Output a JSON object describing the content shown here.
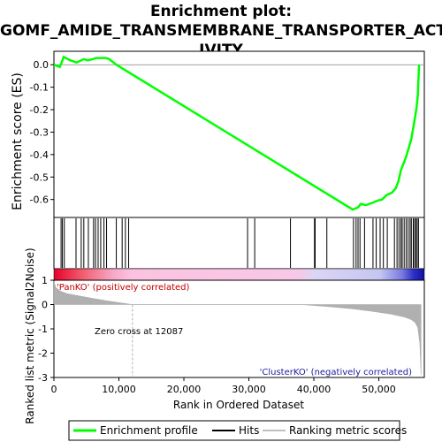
{
  "chart_data": {
    "type": "line",
    "title_line1": "Enrichment plot:",
    "title_line2": "GOMF_AMIDE_TRANSMEMBRANE_TRANSPORTER_ACT",
    "title_line3": "IVITY",
    "es_ylabel": "Enrichment score (ES)",
    "metric_ylabel": "Ranked list metric (Signal2Noise)",
    "xlabel": "Rank in Ordered Dataset",
    "xlim": [
      0,
      57000
    ],
    "es_ylim": [
      -0.68,
      0.06
    ],
    "metric_ylim": [
      -3,
      1
    ],
    "x_ticks": [
      0,
      10000,
      20000,
      30000,
      40000,
      50000
    ],
    "x_tick_labels": [
      "0",
      "10,000",
      "20,000",
      "30,000",
      "40,000",
      "50,000"
    ],
    "es_ticks": [
      0.0,
      -0.1,
      -0.2,
      -0.3,
      -0.4,
      -0.5,
      -0.6
    ],
    "es_tick_labels": [
      "0.0",
      "-0.1",
      "-0.2",
      "-0.3",
      "-0.4",
      "-0.5",
      "-0.6"
    ],
    "metric_ticks": [
      1,
      0,
      -1,
      -2,
      -3
    ],
    "metric_tick_labels": [
      "1",
      "0",
      "-1",
      "-2",
      "-3"
    ],
    "annotations": {
      "pos_label": "'PanKO' (positively correlated)",
      "neg_label": "'ClusterKO' (negatively correlated)",
      "zero_cross": "Zero cross at 12087"
    },
    "zero_cross_rank": 12087,
    "series": [
      {
        "name": "Enrichment profile",
        "color": "#00ff00",
        "x": [
          0,
          900,
          1200,
          1500,
          2500,
          3500,
          4200,
          4600,
          5200,
          6000,
          6500,
          7000,
          7500,
          8000,
          8500,
          9600,
          46000,
          46800,
          47200,
          48000,
          49000,
          49800,
          50500,
          51200,
          52000,
          52600,
          53000,
          53400,
          53800,
          54200,
          54600,
          55000,
          55300,
          55600,
          55800,
          56000,
          56100,
          56200
        ],
        "y": [
          0.0,
          -0.01,
          0.01,
          0.035,
          0.02,
          0.01,
          0.02,
          0.025,
          0.02,
          0.025,
          0.03,
          0.03,
          0.03,
          0.03,
          0.025,
          0.0,
          -0.645,
          -0.635,
          -0.62,
          -0.625,
          -0.615,
          -0.605,
          -0.6,
          -0.58,
          -0.57,
          -0.55,
          -0.52,
          -0.47,
          -0.44,
          -0.41,
          -0.37,
          -0.33,
          -0.28,
          -0.23,
          -0.19,
          -0.14,
          -0.06,
          0.0
        ]
      }
    ],
    "hits": [
      1100,
      1300,
      1600,
      3400,
      4200,
      4600,
      5300,
      6100,
      6400,
      6800,
      7200,
      7700,
      8100,
      9600,
      10500,
      11000,
      11500,
      29800,
      30900,
      36400,
      40100,
      40200,
      42000,
      46100,
      46500,
      46800,
      47100,
      47800,
      49100,
      49600,
      50200,
      50700,
      51300,
      52400,
      52800,
      53100,
      53400,
      53600,
      53900,
      54200,
      54500,
      54800,
      55000,
      55300,
      55500,
      55700,
      55900,
      56100
    ],
    "metric": {
      "x": [
        0,
        300,
        1000,
        2000,
        4000,
        6000,
        8000,
        10000,
        12087,
        20000,
        30000,
        38000,
        42000,
        46000,
        49000,
        52000,
        54000,
        55000,
        55600,
        56000,
        56300,
        56500
      ],
      "y": [
        0.95,
        0.7,
        0.55,
        0.45,
        0.35,
        0.25,
        0.16,
        0.08,
        0.0,
        0.0,
        0.0,
        0.0,
        -0.08,
        -0.18,
        -0.28,
        -0.4,
        -0.52,
        -0.62,
        -0.75,
        -0.95,
        -1.6,
        -2.9
      ]
    },
    "legend": [
      {
        "label": "Enrichment profile",
        "color": "#00ff00"
      },
      {
        "label": "Hits",
        "color": "#000000"
      },
      {
        "label": "Ranking metric scores",
        "color": "#c0c0c0"
      }
    ]
  }
}
